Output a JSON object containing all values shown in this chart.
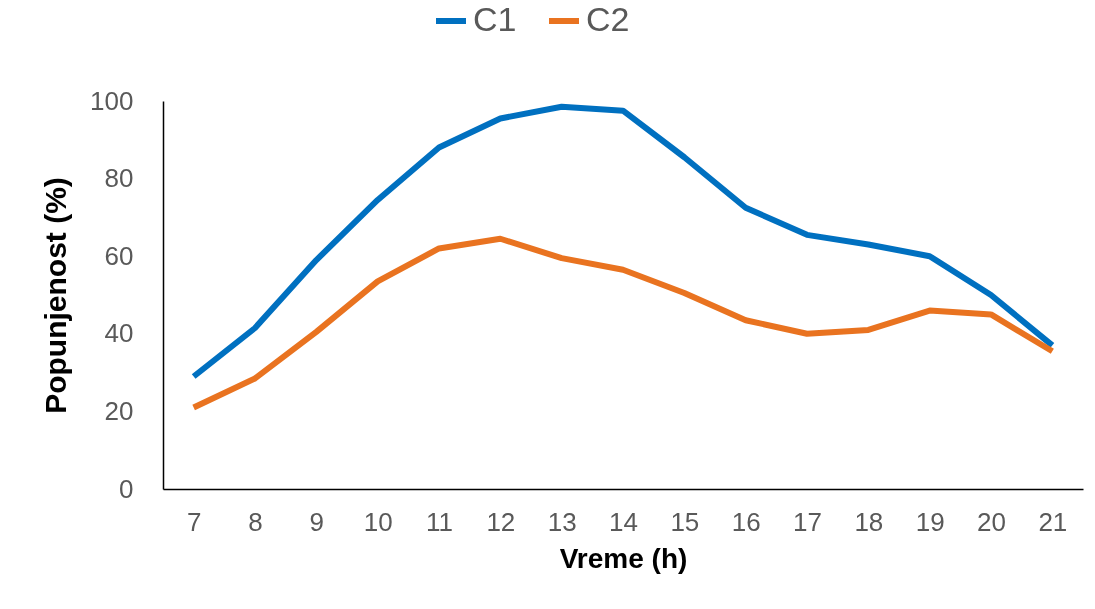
{
  "chart_data": {
    "type": "line",
    "xlabel": "Vreme (h)",
    "ylabel": "Popunjenost (%)",
    "categories": [
      "7",
      "8",
      "9",
      "10",
      "11",
      "12",
      "13",
      "14",
      "15",
      "16",
      "17",
      "18",
      "19",
      "20",
      "21"
    ],
    "series": [
      {
        "name": "C1",
        "color": "#0070c0",
        "values": [
          29,
          41.5,
          59,
          74.5,
          88,
          95.5,
          98.5,
          97.5,
          85.5,
          72.5,
          65.5,
          63,
          60,
          50,
          37
        ]
      },
      {
        "name": "C2",
        "color": "#e97320",
        "values": [
          21,
          28.5,
          40.5,
          53.5,
          62,
          64.5,
          59.5,
          56.5,
          50.5,
          43.5,
          40,
          41,
          46,
          45,
          35.5
        ]
      }
    ],
    "ylim": [
      0,
      100
    ],
    "yticks": [
      0,
      20,
      40,
      60,
      80,
      100
    ],
    "legend": "top"
  }
}
